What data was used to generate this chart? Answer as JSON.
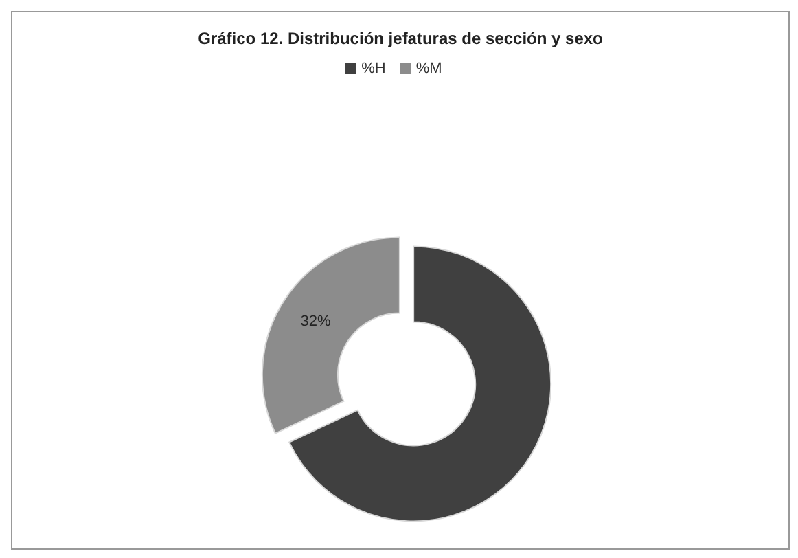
{
  "chart_data": {
    "type": "donut",
    "title": "Gráfico 12. Distribución jefaturas de sección y sexo",
    "categories": [
      "%H",
      "%M"
    ],
    "values": [
      68,
      32
    ],
    "colors": [
      "#404040",
      "#8c8c8c"
    ],
    "value_labels": [
      null,
      "32%"
    ],
    "legend": "top"
  }
}
